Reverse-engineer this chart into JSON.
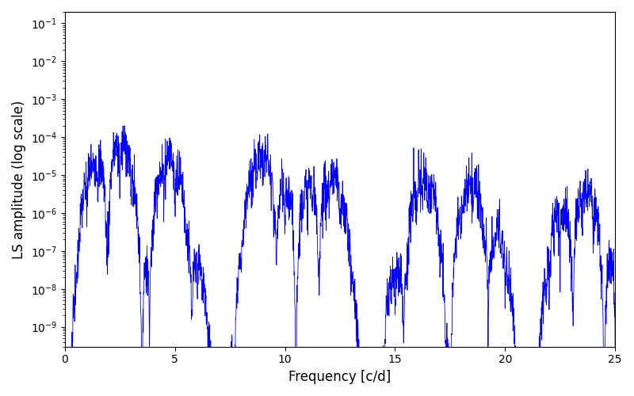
{
  "xlabel": "Frequency [c/d]",
  "ylabel": "LS amplitude (log scale)",
  "line_color": "#0000ff",
  "xlim": [
    0,
    25
  ],
  "ylim": [
    3e-10,
    0.2
  ],
  "background_color": "#ffffff",
  "figsize": [
    8.0,
    5.0
  ],
  "dpi": 100,
  "freq_min": 0.001,
  "freq_max": 25.0,
  "n_points": 2500,
  "seed": 7
}
